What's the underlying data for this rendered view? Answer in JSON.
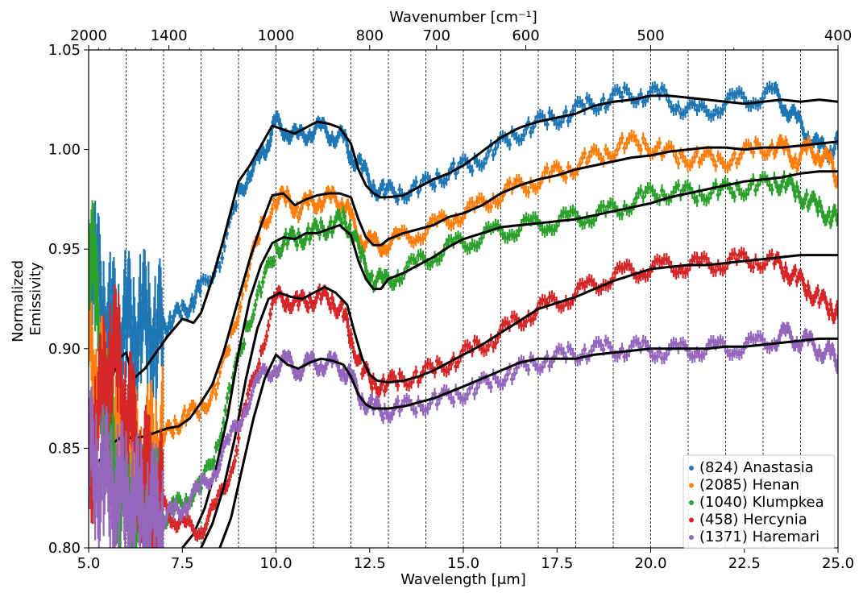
{
  "chart_data": {
    "type": "scatter",
    "xlabel": "Wavelength [μm]",
    "ylabel_lines": [
      "Normalized",
      "Emissivity"
    ],
    "top_xlabel": "Wavenumber [cm⁻¹]",
    "xlim": [
      5.0,
      25.0
    ],
    "ylim": [
      0.8,
      1.05
    ],
    "x_ticks": [
      5.0,
      7.5,
      10.0,
      12.5,
      15.0,
      17.5,
      20.0,
      22.5,
      25.0
    ],
    "x_tick_labels": [
      "5.0",
      "7.5",
      "10.0",
      "12.5",
      "15.0",
      "17.5",
      "20.0",
      "22.5",
      "25.0"
    ],
    "y_ticks": [
      0.8,
      0.85,
      0.9,
      0.95,
      1.0,
      1.05
    ],
    "y_tick_labels": [
      "0.80",
      "0.85",
      "0.90",
      "0.95",
      "1.00",
      "1.05"
    ],
    "top_ticks": [
      2000,
      1400,
      1000,
      800,
      700,
      600,
      500,
      400
    ],
    "top_tick_labels": [
      "2000",
      "1400",
      "1000",
      "800",
      "700",
      "600",
      "500",
      "400"
    ],
    "top_minor_ticks": [
      1900,
      1800,
      1700,
      1600,
      1500,
      1300,
      1200,
      1100,
      900,
      450
    ],
    "vlines_x": [
      6,
      7,
      8,
      9,
      10,
      11,
      12,
      13,
      14,
      15,
      16,
      17,
      18,
      19,
      20,
      21,
      22,
      23,
      24
    ],
    "legend_position": "lower-right",
    "series": [
      {
        "name": "(824) Anastasia",
        "color": "#1f77b4",
        "data_x": [
          5.0,
          5.2,
          5.4,
          5.6,
          5.8,
          6.0,
          6.2,
          6.4,
          6.6,
          6.8,
          7.0,
          7.2,
          7.5,
          7.8,
          8.0,
          8.5,
          9.0,
          9.3,
          9.6,
          9.8,
          10.0,
          10.3,
          10.6,
          10.9,
          11.2,
          11.5,
          11.8,
          12.0,
          12.3,
          12.6,
          12.9,
          13.3,
          13.8,
          14.3,
          14.8,
          15.3,
          15.8,
          16.3,
          16.8,
          17.3,
          17.8,
          18.3,
          18.8,
          19.3,
          19.8,
          20.3,
          20.8,
          21.3,
          21.8,
          22.3,
          22.8,
          23.3,
          23.6,
          23.9,
          24.2,
          24.5,
          24.8,
          25.0
        ],
        "data_y": [
          0.945,
          0.935,
          0.92,
          0.91,
          0.905,
          0.915,
          0.905,
          0.915,
          0.91,
          0.905,
          0.91,
          0.915,
          0.918,
          0.925,
          0.93,
          0.945,
          0.975,
          0.99,
          0.995,
          1.005,
          1.013,
          1.01,
          1.005,
          1.01,
          1.01,
          1.008,
          1.005,
          0.998,
          0.99,
          0.982,
          0.978,
          0.979,
          0.98,
          0.986,
          0.99,
          0.993,
          1.0,
          1.006,
          1.012,
          1.015,
          1.018,
          1.022,
          1.025,
          1.027,
          1.028,
          1.027,
          1.022,
          1.018,
          1.022,
          1.025,
          1.026,
          1.028,
          1.022,
          1.014,
          1.008,
          1.0,
          1.0,
          1.003
        ],
        "model_x": [
          5.0,
          5.3,
          5.6,
          5.8,
          6.0,
          6.2,
          6.5,
          6.8,
          7.1,
          7.5,
          7.8,
          8.0,
          8.3,
          8.6,
          9.0,
          9.3,
          9.6,
          9.9,
          10.2,
          10.5,
          10.8,
          11.1,
          11.4,
          11.7,
          12.0,
          12.2,
          12.4,
          12.6,
          12.8,
          13.0,
          13.4,
          13.8,
          14.2,
          14.6,
          15.0,
          15.5,
          16.0,
          16.5,
          17.0,
          17.5,
          18.0,
          18.5,
          19.0,
          19.5,
          20.0,
          20.5,
          21.0,
          21.5,
          22.0,
          22.5,
          23.0,
          23.5,
          24.0,
          24.5,
          25.0
        ],
        "model_y": [
          0.862,
          0.872,
          0.884,
          0.895,
          0.898,
          0.885,
          0.89,
          0.898,
          0.906,
          0.915,
          0.913,
          0.918,
          0.935,
          0.955,
          0.984,
          0.992,
          1.002,
          1.012,
          1.01,
          1.008,
          1.011,
          1.014,
          1.013,
          1.011,
          1.003,
          0.99,
          0.982,
          0.978,
          0.976,
          0.976,
          0.977,
          0.981,
          0.985,
          0.988,
          0.992,
          0.999,
          1.006,
          1.011,
          1.014,
          1.016,
          1.018,
          1.022,
          1.024,
          1.025,
          1.027,
          1.027,
          1.026,
          1.025,
          1.024,
          1.023,
          1.024,
          1.025,
          1.024,
          1.025,
          1.024
        ]
      },
      {
        "name": "(2085) Henan",
        "color": "#ff7f0e",
        "data_x": [
          5.0,
          5.2,
          5.4,
          5.6,
          5.8,
          6.0,
          6.2,
          6.4,
          6.6,
          6.8,
          7.0,
          7.3,
          7.6,
          8.0,
          8.4,
          8.8,
          9.2,
          9.6,
          10.0,
          10.3,
          10.6,
          10.9,
          11.2,
          11.5,
          11.8,
          12.0,
          12.3,
          12.6,
          12.9,
          13.3,
          13.8,
          14.3,
          14.8,
          15.3,
          15.8,
          16.3,
          16.8,
          17.3,
          17.8,
          18.3,
          18.8,
          19.3,
          19.8,
          20.3,
          20.8,
          21.3,
          21.8,
          22.3,
          22.8,
          23.3,
          23.6,
          23.9,
          24.2,
          24.5,
          24.8,
          25.0
        ],
        "data_y": [
          0.9,
          0.89,
          0.875,
          0.86,
          0.855,
          0.85,
          0.845,
          0.84,
          0.845,
          0.85,
          0.855,
          0.862,
          0.866,
          0.87,
          0.88,
          0.905,
          0.935,
          0.96,
          0.975,
          0.975,
          0.97,
          0.973,
          0.975,
          0.975,
          0.974,
          0.965,
          0.955,
          0.952,
          0.953,
          0.955,
          0.958,
          0.962,
          0.967,
          0.97,
          0.976,
          0.98,
          0.983,
          0.987,
          0.99,
          0.995,
          0.998,
          1.003,
          1.003,
          1.0,
          0.995,
          0.997,
          0.993,
          0.997,
          1.0,
          1.002,
          1.0,
          0.995,
          1.0,
          0.998,
          0.993,
          0.985
        ],
        "model_x": [
          5.0,
          5.3,
          5.6,
          5.9,
          6.2,
          6.5,
          6.8,
          7.1,
          7.4,
          7.7,
          8.0,
          8.3,
          8.6,
          9.0,
          9.3,
          9.6,
          9.9,
          10.2,
          10.5,
          10.8,
          11.1,
          11.4,
          11.7,
          12.0,
          12.2,
          12.4,
          12.6,
          12.8,
          13.0,
          13.4,
          13.8,
          14.2,
          14.6,
          15.0,
          15.5,
          16.0,
          16.5,
          17.0,
          17.5,
          18.0,
          18.5,
          19.0,
          19.5,
          20.0,
          20.5,
          21.0,
          21.5,
          22.0,
          22.5,
          23.0,
          23.5,
          24.0,
          24.5,
          25.0
        ],
        "model_y": [
          0.838,
          0.844,
          0.852,
          0.856,
          0.855,
          0.856,
          0.858,
          0.86,
          0.861,
          0.865,
          0.873,
          0.882,
          0.898,
          0.925,
          0.945,
          0.962,
          0.977,
          0.978,
          0.972,
          0.975,
          0.977,
          0.978,
          0.978,
          0.976,
          0.965,
          0.956,
          0.952,
          0.952,
          0.955,
          0.958,
          0.96,
          0.962,
          0.966,
          0.968,
          0.972,
          0.978,
          0.982,
          0.985,
          0.987,
          0.99,
          0.992,
          0.994,
          0.996,
          0.997,
          0.999,
          1.0,
          1.001,
          1.001,
          1.0,
          1.001,
          1.001,
          1.002,
          1.003,
          1.004
        ]
      },
      {
        "name": "(1040) Klumpkea",
        "color": "#2ca02c",
        "data_x": [
          5.0,
          5.2,
          5.4,
          5.6,
          5.8,
          6.0,
          6.2,
          6.4,
          6.6,
          6.8,
          7.0,
          7.3,
          7.6,
          8.0,
          8.4,
          8.8,
          9.2,
          9.6,
          10.0,
          10.3,
          10.6,
          10.9,
          11.2,
          11.5,
          11.8,
          12.0,
          12.3,
          12.6,
          12.9,
          13.3,
          13.8,
          14.3,
          14.8,
          15.3,
          15.8,
          16.3,
          16.8,
          17.3,
          17.8,
          18.3,
          18.8,
          19.3,
          19.8,
          20.3,
          20.8,
          21.3,
          21.8,
          22.3,
          22.8,
          23.3,
          23.6,
          23.9,
          24.2,
          24.5,
          24.8,
          25.0
        ],
        "data_y": [
          0.96,
          0.92,
          0.88,
          0.85,
          0.835,
          0.825,
          0.82,
          0.815,
          0.812,
          0.812,
          0.815,
          0.82,
          0.825,
          0.83,
          0.85,
          0.88,
          0.91,
          0.93,
          0.95,
          0.955,
          0.955,
          0.958,
          0.96,
          0.962,
          0.965,
          0.96,
          0.945,
          0.935,
          0.933,
          0.938,
          0.943,
          0.948,
          0.952,
          0.955,
          0.958,
          0.96,
          0.962,
          0.963,
          0.965,
          0.967,
          0.968,
          0.972,
          0.976,
          0.979,
          0.978,
          0.978,
          0.979,
          0.98,
          0.982,
          0.983,
          0.984,
          0.978,
          0.975,
          0.97,
          0.967,
          0.965
        ],
        "model_x": [
          7.5,
          7.8,
          8.1,
          8.4,
          8.7,
          9.0,
          9.3,
          9.6,
          9.9,
          10.2,
          10.5,
          10.8,
          11.1,
          11.4,
          11.7,
          12.0,
          12.2,
          12.4,
          12.6,
          12.8,
          13.0,
          13.4,
          13.8,
          14.2,
          14.6,
          15.0,
          15.5,
          16.0,
          16.5,
          17.0,
          17.5,
          18.0,
          18.5,
          19.0,
          19.5,
          20.0,
          20.5,
          21.0,
          21.5,
          22.0,
          22.5,
          23.0,
          23.5,
          24.0,
          24.5,
          25.0
        ],
        "model_y": [
          0.8,
          0.807,
          0.82,
          0.84,
          0.865,
          0.898,
          0.925,
          0.942,
          0.953,
          0.956,
          0.955,
          0.958,
          0.958,
          0.96,
          0.962,
          0.957,
          0.944,
          0.935,
          0.93,
          0.93,
          0.935,
          0.938,
          0.942,
          0.946,
          0.951,
          0.955,
          0.958,
          0.961,
          0.962,
          0.963,
          0.964,
          0.965,
          0.967,
          0.969,
          0.971,
          0.973,
          0.976,
          0.978,
          0.98,
          0.982,
          0.984,
          0.985,
          0.986,
          0.988,
          0.989,
          0.989
        ]
      },
      {
        "name": "(458) Hercynia",
        "color": "#d62728",
        "data_x": [
          5.0,
          5.2,
          5.4,
          5.6,
          5.8,
          6.0,
          6.2,
          6.4,
          6.6,
          6.8,
          7.0,
          7.3,
          7.6,
          8.0,
          8.4,
          8.8,
          9.2,
          9.6,
          10.0,
          10.3,
          10.6,
          10.9,
          11.2,
          11.5,
          11.8,
          12.0,
          12.3,
          12.6,
          12.9,
          13.3,
          13.8,
          14.3,
          14.8,
          15.3,
          15.8,
          16.3,
          16.8,
          17.3,
          17.8,
          18.3,
          18.8,
          19.3,
          19.8,
          20.3,
          20.8,
          21.3,
          21.8,
          22.3,
          22.8,
          23.3,
          23.6,
          23.9,
          24.2,
          24.5,
          24.8,
          25.0
        ],
        "data_y": [
          0.84,
          0.86,
          0.88,
          0.9,
          0.89,
          0.87,
          0.855,
          0.84,
          0.83,
          0.825,
          0.82,
          0.815,
          0.81,
          0.81,
          0.82,
          0.84,
          0.87,
          0.9,
          0.925,
          0.925,
          0.922,
          0.925,
          0.926,
          0.924,
          0.918,
          0.905,
          0.89,
          0.882,
          0.882,
          0.884,
          0.887,
          0.89,
          0.895,
          0.9,
          0.905,
          0.912,
          0.918,
          0.922,
          0.926,
          0.93,
          0.935,
          0.938,
          0.94,
          0.941,
          0.942,
          0.942,
          0.943,
          0.944,
          0.945,
          0.943,
          0.94,
          0.935,
          0.93,
          0.925,
          0.92,
          0.918
        ],
        "model_x": [
          8.0,
          8.3,
          8.6,
          8.9,
          9.2,
          9.5,
          9.8,
          10.1,
          10.4,
          10.7,
          11.0,
          11.3,
          11.6,
          11.9,
          12.1,
          12.3,
          12.5,
          12.7,
          13.0,
          13.4,
          13.8,
          14.2,
          14.6,
          15.0,
          15.5,
          16.0,
          16.5,
          17.0,
          17.5,
          18.0,
          18.5,
          19.0,
          19.5,
          20.0,
          20.5,
          21.0,
          21.5,
          22.0,
          22.5,
          23.0,
          23.5,
          24.0,
          24.5,
          25.0
        ],
        "model_y": [
          0.8,
          0.812,
          0.83,
          0.855,
          0.885,
          0.91,
          0.925,
          0.928,
          0.926,
          0.925,
          0.928,
          0.931,
          0.928,
          0.922,
          0.908,
          0.895,
          0.887,
          0.884,
          0.883,
          0.884,
          0.886,
          0.889,
          0.893,
          0.897,
          0.902,
          0.908,
          0.914,
          0.92,
          0.923,
          0.926,
          0.93,
          0.934,
          0.937,
          0.94,
          0.941,
          0.942,
          0.942,
          0.943,
          0.944,
          0.945,
          0.946,
          0.947,
          0.947,
          0.947
        ]
      },
      {
        "name": "(1371) Haremari",
        "color": "#9467bd",
        "data_x": [
          5.0,
          5.2,
          5.4,
          5.6,
          5.8,
          6.0,
          6.2,
          6.4,
          6.6,
          6.8,
          7.0,
          7.3,
          7.6,
          8.0,
          8.4,
          8.8,
          9.2,
          9.6,
          10.0,
          10.3,
          10.6,
          10.9,
          11.2,
          11.5,
          11.8,
          12.0,
          12.3,
          12.6,
          12.9,
          13.3,
          13.8,
          14.3,
          14.8,
          15.3,
          15.8,
          16.3,
          16.8,
          17.3,
          17.8,
          18.3,
          18.8,
          19.3,
          19.8,
          20.3,
          20.8,
          21.3,
          21.8,
          22.3,
          22.8,
          23.3,
          23.6,
          23.9,
          24.2,
          24.5,
          24.8,
          25.0
        ],
        "data_y": [
          0.845,
          0.84,
          0.835,
          0.83,
          0.828,
          0.825,
          0.822,
          0.818,
          0.815,
          0.815,
          0.815,
          0.818,
          0.822,
          0.83,
          0.84,
          0.855,
          0.872,
          0.885,
          0.892,
          0.893,
          0.89,
          0.892,
          0.893,
          0.892,
          0.89,
          0.885,
          0.875,
          0.87,
          0.869,
          0.87,
          0.872,
          0.874,
          0.877,
          0.88,
          0.884,
          0.888,
          0.892,
          0.895,
          0.897,
          0.899,
          0.9,
          0.9,
          0.9,
          0.899,
          0.899,
          0.9,
          0.9,
          0.901,
          0.902,
          0.905,
          0.907,
          0.905,
          0.903,
          0.9,
          0.897,
          0.894
        ],
        "model_x": [
          8.5,
          8.8,
          9.1,
          9.4,
          9.7,
          10.0,
          10.3,
          10.6,
          10.9,
          11.2,
          11.5,
          11.8,
          12.0,
          12.2,
          12.4,
          12.6,
          12.8,
          13.0,
          13.4,
          13.8,
          14.2,
          14.6,
          15.0,
          15.5,
          16.0,
          16.5,
          17.0,
          17.5,
          18.0,
          18.5,
          19.0,
          19.5,
          20.0,
          20.5,
          21.0,
          21.5,
          22.0,
          22.5,
          23.0,
          23.5,
          24.0,
          24.5,
          25.0
        ],
        "model_y": [
          0.8,
          0.815,
          0.84,
          0.865,
          0.885,
          0.897,
          0.892,
          0.89,
          0.893,
          0.895,
          0.894,
          0.892,
          0.886,
          0.877,
          0.872,
          0.87,
          0.87,
          0.87,
          0.871,
          0.873,
          0.875,
          0.878,
          0.881,
          0.885,
          0.889,
          0.893,
          0.895,
          0.895,
          0.895,
          0.897,
          0.898,
          0.899,
          0.9,
          0.9,
          0.9,
          0.9,
          0.901,
          0.901,
          0.902,
          0.903,
          0.904,
          0.905,
          0.905
        ]
      }
    ]
  }
}
